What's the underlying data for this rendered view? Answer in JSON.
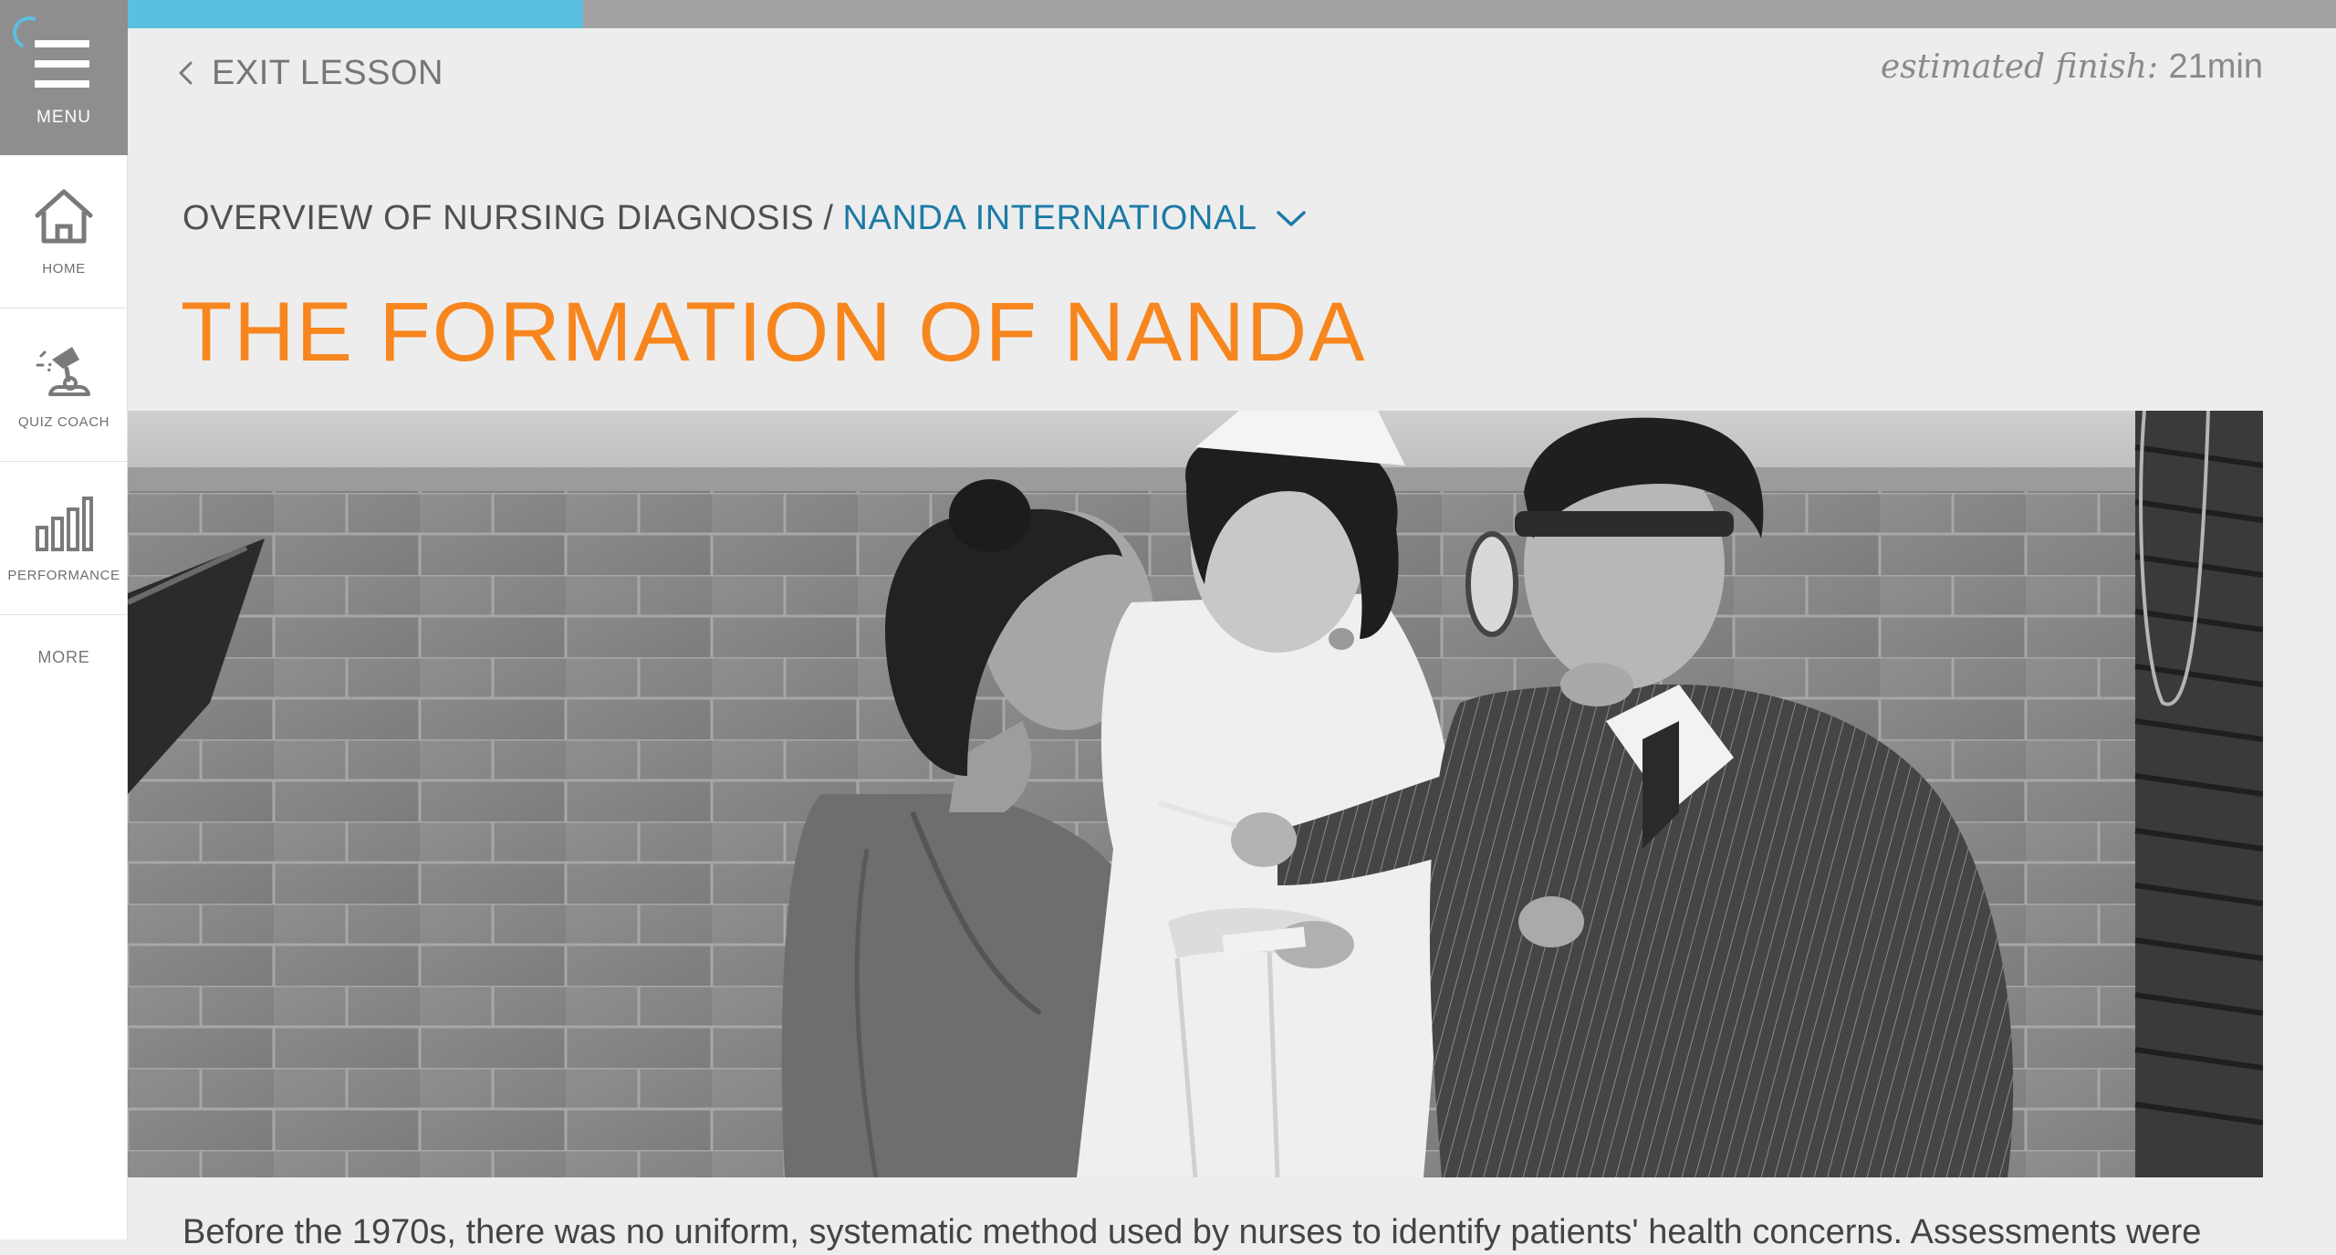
{
  "sidebar": {
    "menu_label": "MENU",
    "items": [
      {
        "label": "HOME",
        "icon": "home-icon"
      },
      {
        "label": "QUIZ COACH",
        "icon": "quiz-coach-icon"
      },
      {
        "label": "PERFORMANCE",
        "icon": "performance-icon"
      }
    ],
    "more_label": "MORE"
  },
  "progress": {
    "fraction": 0.206
  },
  "header": {
    "exit_label": "EXIT LESSON",
    "estimate_prefix": "estimated finish:",
    "estimate_value": "21min"
  },
  "breadcrumb": {
    "parent": "OVERVIEW OF NURSING DIAGNOSIS",
    "separator": "/",
    "current": "NANDA INTERNATIONAL"
  },
  "lesson": {
    "title": "THE FORMATION OF NANDA",
    "body_start": "Before the 1970s, there was no uniform, systematic method used by nurses to identify patients' health concerns. Assessments were"
  },
  "colors": {
    "accent_orange": "#f7861e",
    "link_blue": "#1c7aa6",
    "progress_blue": "#5bc0df",
    "menu_gray": "#8e8e8e"
  }
}
